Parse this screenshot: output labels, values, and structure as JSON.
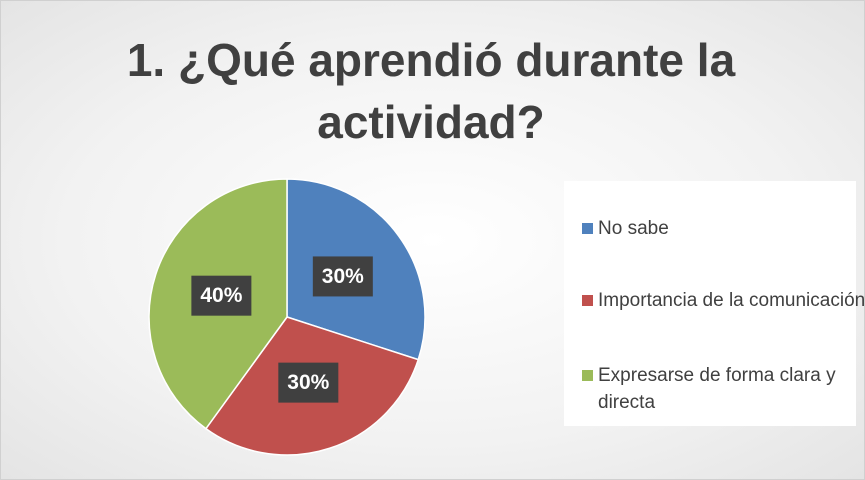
{
  "chart_data": {
    "type": "pie",
    "title": "1. ¿Qué aprendió durante la actividad?",
    "categories": [
      "No sabe",
      "Importancia de la comunicación",
      "Expresarse de forma clara y directa"
    ],
    "values": [
      30,
      30,
      40
    ],
    "value_labels": [
      "30%",
      "30%",
      "40%"
    ],
    "colors": [
      "#4f81bd",
      "#c0504d",
      "#9bbb59"
    ],
    "legend": "right"
  }
}
